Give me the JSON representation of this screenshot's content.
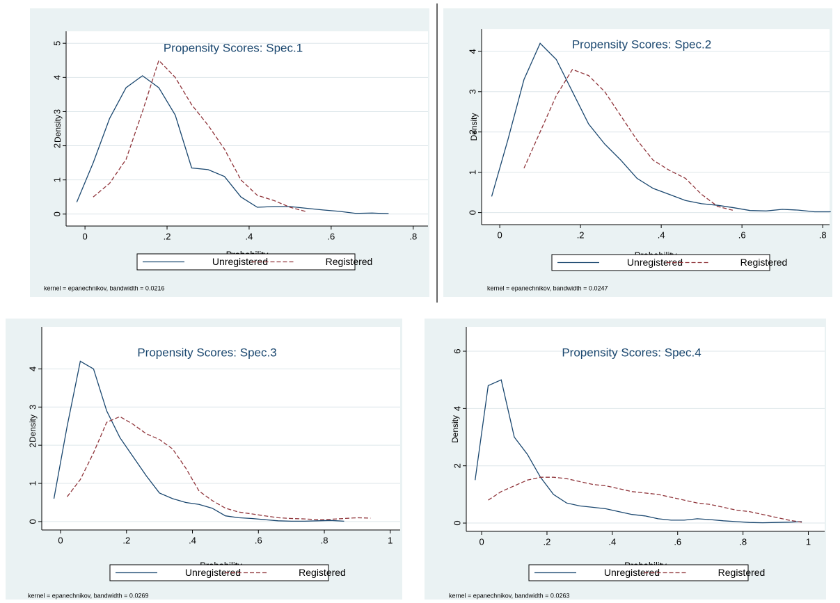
{
  "chart_data": [
    {
      "type": "line",
      "title": "Propensity Scores: Spec.1",
      "ylabel": "Density",
      "xlabel": "Probability",
      "note": "kernel = epanechnikov, bandwidth = 0.0216",
      "grid": true,
      "x": [
        -0.02,
        0.02,
        0.06,
        0.1,
        0.14,
        0.18,
        0.22,
        0.26,
        0.3,
        0.34,
        0.38,
        0.42,
        0.46,
        0.5,
        0.54,
        0.58,
        0.62,
        0.66,
        0.7,
        0.74
      ],
      "series": [
        {
          "name": "Unregistered",
          "color": "#1a476f",
          "values": [
            0.35,
            1.5,
            2.8,
            3.7,
            4.05,
            3.7,
            2.9,
            1.35,
            1.3,
            1.1,
            0.5,
            0.2,
            0.22,
            0.22,
            0.17,
            0.12,
            0.08,
            0.02,
            0.03,
            0.01
          ]
        },
        {
          "name": "Registered",
          "color": "#90353b",
          "dashed": true,
          "values": [
            null,
            0.5,
            0.9,
            1.6,
            3.0,
            4.5,
            4.0,
            3.2,
            2.6,
            1.9,
            1.0,
            0.55,
            0.4,
            0.2,
            0.07,
            null,
            null,
            null,
            null,
            null
          ]
        }
      ],
      "xlim": [
        -0.046,
        0.836
      ],
      "ylim": [
        -0.35,
        5.35
      ],
      "xticks": [
        0,
        {
          "value": 0.2,
          "label": ".2"
        },
        {
          "value": 0.4,
          "label": ".4"
        },
        {
          "value": 0.6,
          "label": ".6"
        },
        {
          "value": 0.8,
          "label": ".8"
        }
      ],
      "yticks": [
        0,
        1,
        2,
        3,
        4,
        5
      ]
    },
    {
      "type": "line",
      "title": "Propensity Scores: Spec.2",
      "ylabel": "Density",
      "xlabel": "Probability",
      "note": "kernel = epanechnikov, bandwidth = 0.0247",
      "grid": true,
      "x": [
        -0.02,
        0.02,
        0.06,
        0.1,
        0.14,
        0.18,
        0.22,
        0.26,
        0.3,
        0.34,
        0.38,
        0.42,
        0.46,
        0.5,
        0.54,
        0.58,
        0.62,
        0.66,
        0.7,
        0.74,
        0.78,
        0.82
      ],
      "series": [
        {
          "name": "Unregistered",
          "color": "#1a476f",
          "values": [
            0.4,
            1.8,
            3.3,
            4.2,
            3.8,
            3.0,
            2.2,
            1.7,
            1.3,
            0.85,
            0.6,
            0.45,
            0.3,
            0.22,
            0.18,
            0.12,
            0.05,
            0.04,
            0.08,
            0.06,
            0.02,
            0.02
          ]
        },
        {
          "name": "Registered",
          "color": "#90353b",
          "dashed": true,
          "values": [
            null,
            null,
            1.1,
            2.0,
            2.9,
            3.55,
            3.4,
            3.0,
            2.4,
            1.8,
            1.3,
            1.05,
            0.85,
            0.45,
            0.15,
            0.05,
            null,
            null,
            null,
            null,
            null,
            null
          ]
        }
      ],
      "xlim": [
        -0.045,
        0.817
      ],
      "ylim": [
        -0.3,
        4.55
      ],
      "xticks": [
        0,
        {
          "value": 0.2,
          "label": ".2"
        },
        {
          "value": 0.4,
          "label": ".4"
        },
        {
          "value": 0.6,
          "label": ".6"
        },
        {
          "value": 0.8,
          "label": ".8"
        }
      ],
      "yticks": [
        0,
        1,
        2,
        3,
        4
      ]
    },
    {
      "type": "line",
      "title": "Propensity Scores: Spec.3",
      "ylabel": "Density",
      "xlabel": "Probability",
      "note": "kernel = epanechnikov, bandwidth = 0.0269",
      "grid": true,
      "x": [
        -0.02,
        0.02,
        0.06,
        0.1,
        0.14,
        0.18,
        0.22,
        0.26,
        0.3,
        0.34,
        0.38,
        0.42,
        0.46,
        0.5,
        0.54,
        0.58,
        0.62,
        0.66,
        0.7,
        0.74,
        0.78,
        0.82,
        0.86,
        0.9,
        0.94
      ],
      "series": [
        {
          "name": "Unregistered",
          "color": "#1a476f",
          "values": [
            0.6,
            2.5,
            4.2,
            4.0,
            2.9,
            2.2,
            1.7,
            1.2,
            0.75,
            0.6,
            0.5,
            0.45,
            0.35,
            0.15,
            0.1,
            0.08,
            0.05,
            0.02,
            0.01,
            0.01,
            0.02,
            0.03,
            0.01,
            null,
            null
          ]
        },
        {
          "name": "Registered",
          "color": "#90353b",
          "dashed": true,
          "values": [
            null,
            0.65,
            1.1,
            1.8,
            2.6,
            2.75,
            2.55,
            2.3,
            2.15,
            1.9,
            1.4,
            0.8,
            0.55,
            0.35,
            0.25,
            0.2,
            0.15,
            0.1,
            0.08,
            0.07,
            0.05,
            0.06,
            0.08,
            0.1,
            0.09
          ]
        }
      ],
      "xlim": [
        -0.057,
        1.03
      ],
      "ylim": [
        -0.22,
        5.1
      ],
      "xticks": [
        0,
        {
          "value": 0.2,
          "label": ".2"
        },
        {
          "value": 0.4,
          "label": ".4"
        },
        {
          "value": 0.6,
          "label": ".6"
        },
        {
          "value": 0.8,
          "label": ".8"
        },
        1
      ],
      "yticks": [
        0,
        1,
        2,
        3,
        4
      ]
    },
    {
      "type": "line",
      "title": "Propensity Scores: Spec.4",
      "ylabel": "Density",
      "xlabel": "Probability",
      "note": "kernel = epanechnikov, bandwidth = 0.0263",
      "grid": true,
      "x": [
        -0.02,
        0.02,
        0.06,
        0.1,
        0.14,
        0.18,
        0.22,
        0.26,
        0.3,
        0.34,
        0.38,
        0.42,
        0.46,
        0.5,
        0.54,
        0.58,
        0.62,
        0.66,
        0.7,
        0.74,
        0.78,
        0.82,
        0.86,
        0.9,
        0.94,
        0.98
      ],
      "series": [
        {
          "name": "Unregistered",
          "color": "#1a476f",
          "values": [
            1.5,
            4.8,
            5.0,
            3.0,
            2.4,
            1.6,
            1.0,
            0.7,
            0.6,
            0.55,
            0.5,
            0.4,
            0.3,
            0.25,
            0.15,
            0.1,
            0.1,
            0.15,
            0.12,
            0.08,
            0.05,
            0.02,
            0.01,
            0.02,
            0.03,
            0.05
          ]
        },
        {
          "name": "Registered",
          "color": "#90353b",
          "dashed": true,
          "values": [
            null,
            0.8,
            1.1,
            1.3,
            1.5,
            1.6,
            1.6,
            1.55,
            1.45,
            1.35,
            1.3,
            1.2,
            1.1,
            1.05,
            1.0,
            0.9,
            0.8,
            0.7,
            0.65,
            0.55,
            0.45,
            0.4,
            0.3,
            0.2,
            0.1,
            0.03
          ]
        }
      ],
      "xlim": [
        -0.047,
        1.05
      ],
      "ylim": [
        -0.29,
        6.85
      ],
      "xticks": [
        0,
        {
          "value": 0.2,
          "label": ".2"
        },
        {
          "value": 0.4,
          "label": ".4"
        },
        {
          "value": 0.6,
          "label": ".6"
        },
        {
          "value": 0.8,
          "label": ".8"
        },
        1
      ],
      "yticks": [
        0,
        2,
        4,
        6
      ]
    }
  ]
}
